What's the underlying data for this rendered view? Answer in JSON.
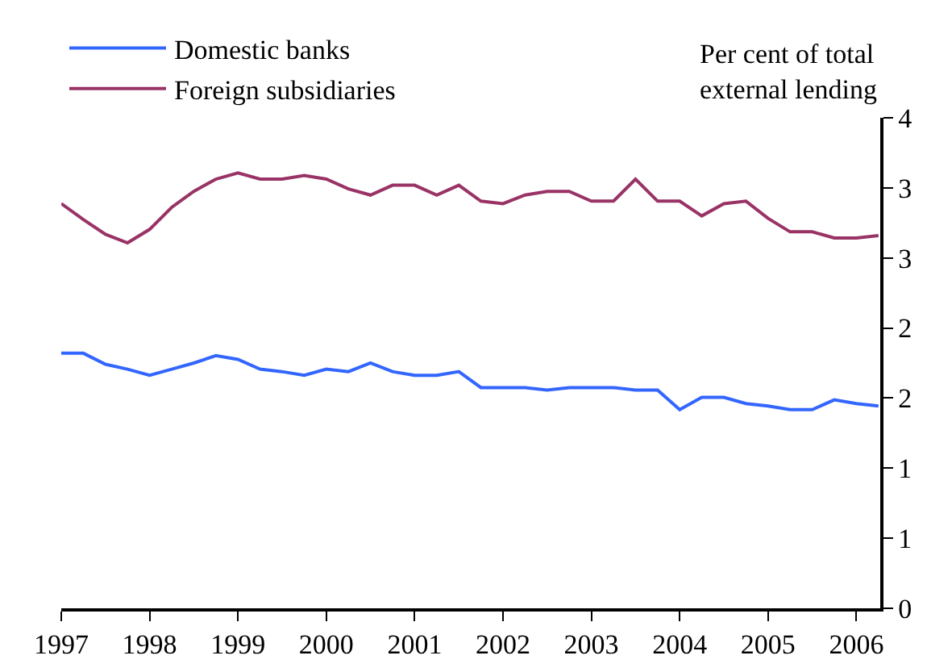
{
  "chart_data": {
    "type": "line",
    "ylabel": "Per cent of total\nexternal lending",
    "x": [
      1997,
      1997.25,
      1997.5,
      1997.75,
      1998,
      1998.25,
      1998.5,
      1998.75,
      1999,
      1999.25,
      1999.5,
      1999.75,
      2000,
      2000.25,
      2000.5,
      2000.75,
      2001,
      2001.25,
      2001.5,
      2001.75,
      2002,
      2002.25,
      2002.5,
      2002.75,
      2003,
      2003.25,
      2003.5,
      2003.75,
      2004,
      2004.25,
      2004.5,
      2004.75,
      2005,
      2005.25,
      2005.5,
      2005.75,
      2006,
      2006.25
    ],
    "series": [
      {
        "name": "Domestic banks",
        "color": "#3366ff",
        "values": [
          2.08,
          2.08,
          1.99,
          1.95,
          1.9,
          1.95,
          2.0,
          2.06,
          2.03,
          1.95,
          1.93,
          1.9,
          1.95,
          1.93,
          2.0,
          1.93,
          1.9,
          1.9,
          1.93,
          1.8,
          1.8,
          1.8,
          1.78,
          1.8,
          1.8,
          1.8,
          1.78,
          1.78,
          1.62,
          1.72,
          1.72,
          1.67,
          1.65,
          1.62,
          1.62,
          1.7,
          1.67,
          1.65
        ]
      },
      {
        "name": "Foreign subsidiaries",
        "color": "#993366",
        "values": [
          3.3,
          3.17,
          3.05,
          2.98,
          3.09,
          3.27,
          3.4,
          3.5,
          3.55,
          3.5,
          3.5,
          3.53,
          3.5,
          3.42,
          3.37,
          3.45,
          3.45,
          3.37,
          3.45,
          3.32,
          3.3,
          3.37,
          3.4,
          3.4,
          3.32,
          3.32,
          3.5,
          3.32,
          3.32,
          3.2,
          3.3,
          3.32,
          3.18,
          3.07,
          3.07,
          3.02,
          3.02,
          3.04
        ]
      }
    ],
    "xlim": [
      1997,
      2006.27
    ],
    "xticks": [
      1997,
      1998,
      1999,
      2000,
      2001,
      2002,
      2003,
      2004,
      2005,
      2006
    ],
    "ylim": [
      0,
      4
    ],
    "yticks": [
      0,
      {
        "value": 0.571,
        "label": "1"
      },
      {
        "value": 1.143,
        "label": "1"
      },
      {
        "value": 1.714,
        "label": "2"
      },
      {
        "value": 2.286,
        "label": "2"
      },
      {
        "value": 2.857,
        "label": "3"
      },
      {
        "value": 3.429,
        "label": "3"
      },
      4
    ],
    "grid": false,
    "legend": "top left",
    "marker": "none",
    "line_style": "solid"
  }
}
